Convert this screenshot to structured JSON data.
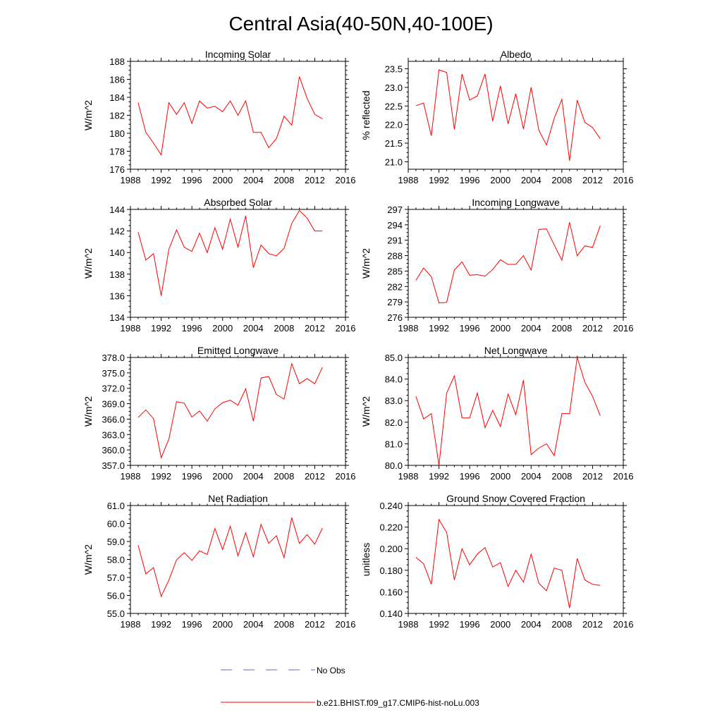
{
  "figure": {
    "title": "Central Asia(40-50N,40-100E)",
    "legend": [
      {
        "label": "No Obs",
        "color": "#6666cc",
        "style": "dashed"
      },
      {
        "label": "b.e21.BHIST.f09_g17.CMIP6-hist-noLu.003",
        "color": "#ff0000",
        "style": "solid"
      }
    ]
  },
  "chart_data": [
    {
      "type": "line",
      "title": "Incoming Solar",
      "ylabel": "W/m^2",
      "xlim": [
        1988,
        2016
      ],
      "ylim": [
        176,
        188
      ],
      "xticks": [
        1988,
        1992,
        1996,
        2000,
        2004,
        2008,
        2012,
        2016
      ],
      "yticks": [
        176,
        178,
        180,
        182,
        184,
        186,
        188
      ],
      "ydecimals": 0,
      "x": [
        1989,
        1990,
        1991,
        1992,
        1993,
        1994,
        1995,
        1996,
        1997,
        1998,
        1999,
        2000,
        2001,
        2002,
        2003,
        2004,
        2005,
        2006,
        2007,
        2008,
        2009,
        2010,
        2011,
        2012,
        2013
      ],
      "series": [
        {
          "color": "#ff0000",
          "values": [
            183.4,
            180.1,
            178.9,
            177.6,
            183.4,
            182.1,
            183.4,
            181.1,
            183.6,
            182.8,
            183.0,
            182.4,
            183.6,
            182.0,
            183.6,
            180.1,
            180.1,
            178.4,
            179.4,
            181.9,
            180.9,
            186.3,
            183.9,
            182.1,
            181.6
          ]
        }
      ]
    },
    {
      "type": "line",
      "title": "Albedo",
      "ylabel": "% reflected",
      "xlim": [
        1988,
        2016
      ],
      "ylim": [
        20.8,
        23.7
      ],
      "xticks": [
        1988,
        1992,
        1996,
        2000,
        2004,
        2008,
        2012,
        2016
      ],
      "yticks": [
        21.0,
        21.5,
        22.0,
        22.5,
        23.0,
        23.5
      ],
      "ydecimals": 1,
      "x": [
        1989,
        1990,
        1991,
        1992,
        1993,
        1994,
        1995,
        1996,
        1997,
        1998,
        1999,
        2000,
        2001,
        2002,
        2003,
        2004,
        2005,
        2006,
        2007,
        2008,
        2009,
        2010,
        2011,
        2012,
        2013
      ],
      "series": [
        {
          "color": "#ff0000",
          "values": [
            22.51,
            22.58,
            21.7,
            23.47,
            23.4,
            21.87,
            23.36,
            22.66,
            22.77,
            23.36,
            22.09,
            23.04,
            22.02,
            22.83,
            21.88,
            23.0,
            21.85,
            21.45,
            22.17,
            22.68,
            21.03,
            22.66,
            22.06,
            21.92,
            21.62
          ]
        }
      ]
    },
    {
      "type": "line",
      "title": "Absorbed Solar",
      "ylabel": "W/m^2",
      "xlim": [
        1988,
        2016
      ],
      "ylim": [
        134,
        144
      ],
      "xticks": [
        1988,
        1992,
        1996,
        2000,
        2004,
        2008,
        2012,
        2016
      ],
      "yticks": [
        134,
        136,
        138,
        140,
        142,
        144
      ],
      "ydecimals": 0,
      "x": [
        1989,
        1990,
        1991,
        1992,
        1993,
        1994,
        1995,
        1996,
        1997,
        1998,
        1999,
        2000,
        2001,
        2002,
        2003,
        2004,
        2005,
        2006,
        2007,
        2008,
        2009,
        2010,
        2011,
        2012,
        2013
      ],
      "series": [
        {
          "color": "#ff0000",
          "values": [
            141.9,
            139.3,
            139.9,
            136.0,
            140.3,
            142.1,
            140.5,
            140.1,
            141.8,
            140.0,
            142.3,
            140.3,
            143.1,
            140.5,
            143.4,
            138.6,
            140.7,
            139.9,
            139.7,
            140.4,
            142.7,
            143.9,
            143.2,
            142.0,
            142.0
          ]
        }
      ]
    },
    {
      "type": "line",
      "title": "Incoming Longwave",
      "ylabel": "W/m^2",
      "xlim": [
        1988,
        2016
      ],
      "ylim": [
        276,
        297
      ],
      "xticks": [
        1988,
        1992,
        1996,
        2000,
        2004,
        2008,
        2012,
        2016
      ],
      "yticks": [
        276,
        279,
        282,
        285,
        288,
        291,
        294,
        297
      ],
      "ydecimals": 0,
      "x": [
        1989,
        1990,
        1991,
        1992,
        1993,
        1994,
        1995,
        1996,
        1997,
        1998,
        1999,
        2000,
        2001,
        2002,
        2003,
        2004,
        2005,
        2006,
        2007,
        2008,
        2009,
        2010,
        2011,
        2012,
        2013
      ],
      "series": [
        {
          "color": "#ff0000",
          "values": [
            283.2,
            285.6,
            283.9,
            278.8,
            278.9,
            285.2,
            286.8,
            284.2,
            284.3,
            284.0,
            285.3,
            287.2,
            286.3,
            286.3,
            288.0,
            285.2,
            293.1,
            293.2,
            290.1,
            287.1,
            294.5,
            288.0,
            289.9,
            289.6,
            293.8
          ]
        }
      ]
    },
    {
      "type": "line",
      "title": "Emitted Longwave",
      "ylabel": "W/m^2",
      "xlim": [
        1988,
        2016
      ],
      "ylim": [
        357,
        378
      ],
      "xticks": [
        1988,
        1992,
        1996,
        2000,
        2004,
        2008,
        2012,
        2016
      ],
      "yticks": [
        357,
        360,
        363,
        366,
        369,
        372,
        375,
        378
      ],
      "ydecimals": 1,
      "x": [
        1989,
        1990,
        1991,
        1992,
        1993,
        1994,
        1995,
        1996,
        1997,
        1998,
        1999,
        2000,
        2001,
        2002,
        2003,
        2004,
        2005,
        2006,
        2007,
        2008,
        2009,
        2010,
        2011,
        2012,
        2013
      ],
      "series": [
        {
          "color": "#ff0000",
          "values": [
            366.3,
            367.8,
            366.1,
            358.5,
            362.1,
            369.4,
            369.1,
            366.4,
            367.6,
            365.6,
            368.0,
            369.2,
            369.7,
            368.7,
            371.9,
            365.6,
            374.0,
            374.3,
            370.8,
            369.9,
            376.8,
            372.9,
            373.9,
            372.9,
            376.1
          ]
        }
      ]
    },
    {
      "type": "line",
      "title": "Net Longwave",
      "ylabel": "W/m^2",
      "xlim": [
        1988,
        2016
      ],
      "ylim": [
        80,
        85
      ],
      "xticks": [
        1988,
        1992,
        1996,
        2000,
        2004,
        2008,
        2012,
        2016
      ],
      "yticks": [
        80,
        81,
        82,
        83,
        84,
        85
      ],
      "ydecimals": 1,
      "x": [
        1989,
        1990,
        1991,
        1992,
        1993,
        1994,
        1995,
        1996,
        1997,
        1998,
        1999,
        2000,
        2001,
        2002,
        2003,
        2004,
        2005,
        2006,
        2007,
        2008,
        2009,
        2010,
        2011,
        2012,
        2013
      ],
      "series": [
        {
          "color": "#ff0000",
          "values": [
            83.2,
            82.15,
            82.4,
            80.0,
            83.35,
            84.15,
            82.2,
            82.2,
            83.35,
            81.75,
            82.55,
            81.8,
            83.3,
            82.35,
            83.95,
            80.5,
            80.8,
            81.0,
            80.45,
            82.4,
            82.4,
            85.0,
            83.85,
            83.2,
            82.3
          ]
        }
      ]
    },
    {
      "type": "line",
      "title": "Net Radiation",
      "ylabel": "W/m^2",
      "xlim": [
        1988,
        2016
      ],
      "ylim": [
        55,
        61
      ],
      "xticks": [
        1988,
        1992,
        1996,
        2000,
        2004,
        2008,
        2012,
        2016
      ],
      "yticks": [
        55,
        56,
        57,
        58,
        59,
        60,
        61
      ],
      "ydecimals": 1,
      "x": [
        1989,
        1990,
        1991,
        1992,
        1993,
        1994,
        1995,
        1996,
        1997,
        1998,
        1999,
        2000,
        2001,
        2002,
        2003,
        2004,
        2005,
        2006,
        2007,
        2008,
        2009,
        2010,
        2011,
        2012,
        2013
      ],
      "series": [
        {
          "color": "#ff0000",
          "values": [
            58.8,
            57.2,
            57.55,
            55.95,
            56.85,
            57.98,
            58.38,
            57.95,
            58.48,
            58.28,
            59.72,
            58.55,
            59.85,
            58.2,
            59.48,
            58.15,
            59.95,
            58.9,
            59.32,
            58.1,
            60.33,
            58.9,
            59.38,
            58.85,
            59.75
          ]
        }
      ]
    },
    {
      "type": "line",
      "title": "Ground Snow Covered Fraction",
      "ylabel": "unitless",
      "xlim": [
        1988,
        2016
      ],
      "ylim": [
        0.14,
        0.24
      ],
      "xticks": [
        1988,
        1992,
        1996,
        2000,
        2004,
        2008,
        2012,
        2016
      ],
      "yticks": [
        0.14,
        0.16,
        0.18,
        0.2,
        0.22,
        0.24
      ],
      "ydecimals": 3,
      "x": [
        1989,
        1990,
        1991,
        1992,
        1993,
        1994,
        1995,
        1996,
        1997,
        1998,
        1999,
        2000,
        2001,
        2002,
        2003,
        2004,
        2005,
        2006,
        2007,
        2008,
        2009,
        2010,
        2011,
        2012,
        2013
      ],
      "series": [
        {
          "color": "#ff0000",
          "values": [
            0.192,
            0.186,
            0.167,
            0.227,
            0.215,
            0.171,
            0.2,
            0.185,
            0.195,
            0.201,
            0.183,
            0.187,
            0.165,
            0.18,
            0.169,
            0.195,
            0.168,
            0.161,
            0.182,
            0.18,
            0.145,
            0.191,
            0.171,
            0.167,
            0.166
          ]
        }
      ]
    }
  ]
}
